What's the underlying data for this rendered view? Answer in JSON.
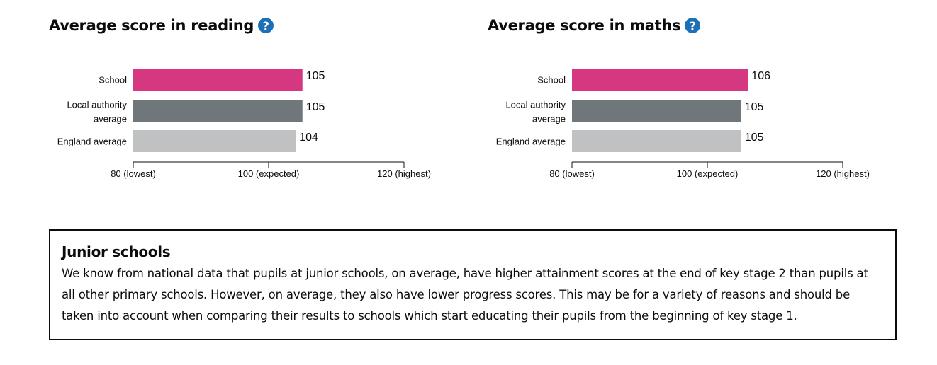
{
  "colors": {
    "school": "#d53880",
    "local_authority": "#6f777b",
    "england": "#bfc1c3",
    "help_icon": "#1d70b8"
  },
  "help_icon": {
    "icon": "question-mark-icon",
    "glyph": "?"
  },
  "chart_data": [
    {
      "type": "bar",
      "orientation": "horizontal",
      "title": "Average score in reading",
      "categories": [
        "School",
        "Local authority average",
        "England average"
      ],
      "category_lines": [
        [
          "School"
        ],
        [
          "Local authority",
          "average"
        ],
        [
          "England average"
        ]
      ],
      "values": [
        105,
        105,
        104
      ],
      "value_labels": [
        "105",
        "105",
        "104"
      ],
      "xlim": [
        80,
        120
      ],
      "ticks": [
        80,
        100,
        120
      ],
      "tick_labels": [
        "80 (lowest)",
        "100 (expected)",
        "120 (highest)"
      ],
      "grid": false
    },
    {
      "type": "bar",
      "orientation": "horizontal",
      "title": "Average score in maths",
      "categories": [
        "School",
        "Local authority average",
        "England average"
      ],
      "category_lines": [
        [
          "School"
        ],
        [
          "Local authority",
          "average"
        ],
        [
          "England average"
        ]
      ],
      "values": [
        106,
        105,
        105
      ],
      "value_labels": [
        "106",
        "105",
        "105"
      ],
      "xlim": [
        80,
        120
      ],
      "ticks": [
        80,
        100,
        120
      ],
      "tick_labels": [
        "80 (lowest)",
        "100 (expected)",
        "120 (highest)"
      ],
      "grid": false
    }
  ],
  "info_box": {
    "heading": "Junior schools",
    "body": "We know from national data that pupils at junior schools, on average, have higher attainment scores at the end of key stage 2 than pupils at all other primary schools. However, on average, they also have lower progress scores. This may be for a variety of reasons and should be taken into account when comparing their results to schools which start educating their pupils from the beginning of key stage 1."
  }
}
